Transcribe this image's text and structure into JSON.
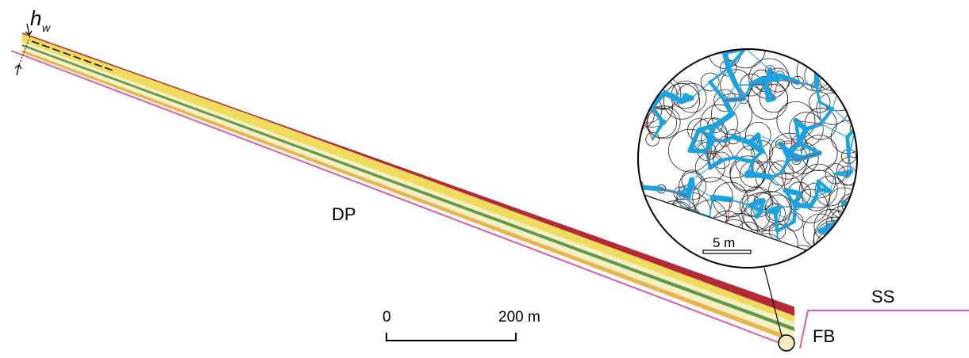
{
  "labels": {
    "hw": {
      "main": "h",
      "sub": "w"
    },
    "dp": "DP",
    "ss": "SS",
    "fb": "FB",
    "scale_zero": "0",
    "scale_end": "200 m",
    "zoom_scale": "5 m"
  }
}
